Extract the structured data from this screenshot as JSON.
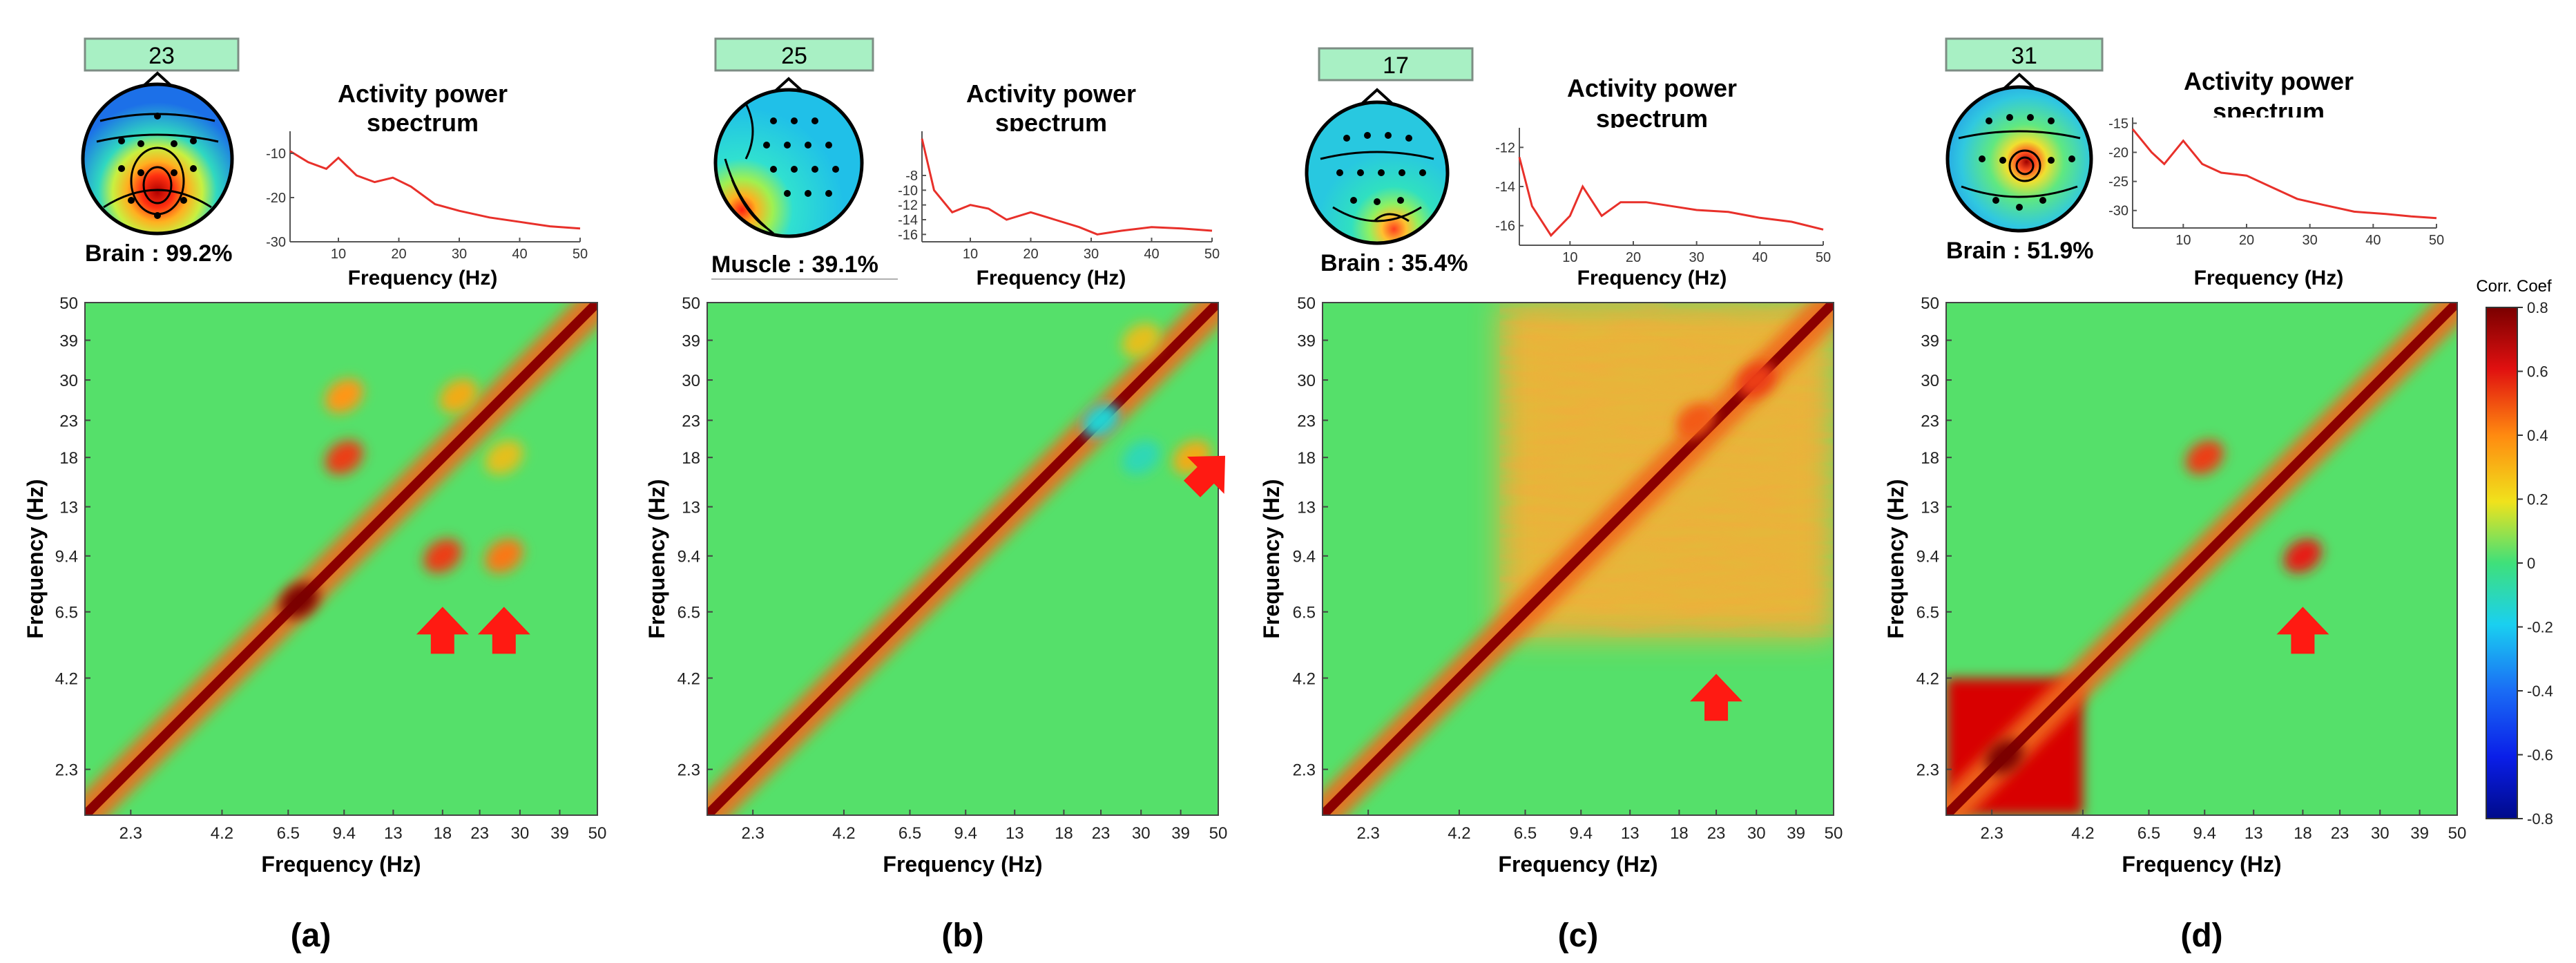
{
  "figure": {
    "power_title_line1": "Activity power",
    "power_title_line2": "spectrum",
    "freq_xlabel": "Frequency (Hz)",
    "freq_ylabel": "Frequency (Hz)"
  },
  "colorbar": {
    "title": "Corr. Coef",
    "ticks": [
      "0.8",
      "0.6",
      "0.4",
      "0.2",
      "0",
      "-0.2",
      "-0.4",
      "-0.6",
      "-0.8"
    ],
    "values": [
      0.8,
      0.6,
      0.4,
      0.2,
      0,
      -0.2,
      -0.4,
      -0.6,
      -0.8
    ]
  },
  "colors": {
    "badge": "#a8f0c4",
    "spectrum_line": "#e8302a",
    "arrow": "#ff1a12",
    "diagonal": "#8b0000",
    "background": "#55e06a"
  },
  "chart_data": [
    {
      "type": "heatmap",
      "panel": "(a)",
      "component": "23",
      "classification": "Brain : 99.2%",
      "power_spectrum": {
        "type": "line",
        "x": [
          2,
          5,
          8,
          10,
          13,
          16,
          19,
          22,
          26,
          30,
          35,
          40,
          45,
          50
        ],
        "y": [
          -9.5,
          -12,
          -13.5,
          -11,
          -15,
          -16.5,
          -15.5,
          -17.5,
          -21.5,
          -23,
          -24.5,
          -25.5,
          -26.5,
          -27
        ],
        "xlim": [
          2,
          50
        ],
        "ylim": [
          -30,
          -5
        ],
        "xticks": [
          "10",
          "20",
          "30",
          "40",
          "50"
        ],
        "yticks": [
          "-10",
          "-20",
          "-30"
        ],
        "xlabel": "Frequency (Hz)"
      },
      "xticks": [
        "2.3",
        "4.2",
        "6.5",
        "9.4",
        "13",
        "18",
        "23",
        "30",
        "39",
        "50"
      ],
      "yticks": [
        "50",
        "39",
        "30",
        "23",
        "18",
        "13",
        "9.4",
        "6.5",
        "4.2",
        "2.3"
      ],
      "xlabel": "Frequency (Hz)",
      "ylabel": "Frequency (Hz)",
      "features": [
        {
          "x_hz": 9.4,
          "y_hz": 27,
          "corr": 0.4
        },
        {
          "x_hz": 9.4,
          "y_hz": 18,
          "corr": 0.55
        },
        {
          "x_hz": 20,
          "y_hz": 27,
          "corr": 0.35
        },
        {
          "x_hz": 27,
          "y_hz": 18,
          "corr": 0.3
        },
        {
          "x_hz": 18,
          "y_hz": 9.4,
          "corr": 0.55
        },
        {
          "x_hz": 27,
          "y_hz": 9.4,
          "corr": 0.45
        },
        {
          "x_hz": 7,
          "y_hz": 7,
          "corr": 0.8
        }
      ],
      "arrows": [
        {
          "x_hz": 18,
          "y_hz": 5.6,
          "direction": "up"
        },
        {
          "x_hz": 27,
          "y_hz": 5.6,
          "direction": "up"
        }
      ]
    },
    {
      "type": "heatmap",
      "panel": "(b)",
      "component": "25",
      "classification": "Muscle : 39.1%",
      "power_spectrum": {
        "type": "line",
        "x": [
          2,
          4,
          7,
          10,
          13,
          16,
          20,
          24,
          28,
          31,
          35,
          40,
          45,
          50
        ],
        "y": [
          -3,
          -10,
          -13,
          -12,
          -12.5,
          -14,
          -13,
          -14,
          -15,
          -16,
          -15.5,
          -15,
          -15.2,
          -15.5
        ],
        "xlim": [
          2,
          50
        ],
        "ylim": [
          -17,
          -2
        ],
        "xticks": [
          "10",
          "20",
          "30",
          "40",
          "50"
        ],
        "yticks": [
          "-8",
          "-10",
          "-12",
          "-14",
          "-16"
        ],
        "xlabel": "Frequency (Hz)"
      },
      "xticks": [
        "2.3",
        "4.2",
        "6.5",
        "9.4",
        "13",
        "18",
        "23",
        "30",
        "39",
        "50"
      ],
      "yticks": [
        "50",
        "39",
        "30",
        "23",
        "18",
        "13",
        "9.4",
        "6.5",
        "4.2",
        "2.3"
      ],
      "xlabel": "Frequency (Hz)",
      "ylabel": "Frequency (Hz)",
      "features": [
        {
          "x_hz": 23,
          "y_hz": 23,
          "corr": -0.15
        },
        {
          "x_hz": 30,
          "y_hz": 18,
          "corr": -0.1
        },
        {
          "x_hz": 30,
          "y_hz": 39,
          "corr": 0.3
        },
        {
          "x_hz": 42,
          "y_hz": 18,
          "corr": 0.35
        }
      ],
      "arrows": [
        {
          "x_hz": 46,
          "y_hz": 16,
          "direction": "up-right"
        }
      ]
    },
    {
      "type": "heatmap",
      "panel": "(c)",
      "component": "17",
      "classification": "Brain : 35.4%",
      "power_spectrum": {
        "type": "line",
        "x": [
          2,
          4,
          7,
          10,
          12,
          15,
          18,
          22,
          26,
          30,
          35,
          40,
          45,
          50
        ],
        "y": [
          -12.5,
          -15,
          -16.5,
          -15.5,
          -14,
          -15.5,
          -14.8,
          -14.8,
          -15,
          -15.2,
          -15.3,
          -15.6,
          -15.8,
          -16.2
        ],
        "xlim": [
          2,
          50
        ],
        "ylim": [
          -17,
          -11
        ],
        "xticks": [
          "10",
          "20",
          "30",
          "40",
          "50"
        ],
        "yticks": [
          "-12",
          "-14",
          "-16"
        ],
        "xlabel": "Frequency (Hz)"
      },
      "xticks": [
        "2.3",
        "4.2",
        "6.5",
        "9.4",
        "13",
        "18",
        "23",
        "30",
        "39",
        "50"
      ],
      "yticks": [
        "50",
        "39",
        "30",
        "23",
        "18",
        "13",
        "9.4",
        "6.5",
        "4.2",
        "2.3"
      ],
      "xlabel": "Frequency (Hz)",
      "ylabel": "Frequency (Hz)",
      "features": [
        {
          "x_hz": 20,
          "y_hz": 23,
          "corr": 0.5
        },
        {
          "x_hz": 30,
          "y_hz": 30,
          "corr": 0.55
        }
      ],
      "arrows": [
        {
          "x_hz": 23,
          "y_hz": 3.6,
          "direction": "up"
        }
      ]
    },
    {
      "type": "heatmap",
      "panel": "(d)",
      "component": "31",
      "classification": "Brain : 51.9%",
      "power_spectrum": {
        "type": "line",
        "x": [
          2,
          5,
          7,
          10,
          13,
          16,
          20,
          24,
          28,
          32,
          37,
          42,
          46,
          50
        ],
        "y": [
          -16,
          -20,
          -22,
          -18,
          -22,
          -23.5,
          -24,
          -26,
          -28,
          -29,
          -30.2,
          -30.6,
          -31,
          -31.3
        ],
        "xlim": [
          2,
          50
        ],
        "ylim": [
          -33,
          -14
        ],
        "xticks": [
          "10",
          "20",
          "30",
          "40",
          "50"
        ],
        "yticks": [
          "-15",
          "-20",
          "-25",
          "-30"
        ],
        "xlabel": "Frequency (Hz)"
      },
      "xticks": [
        "2.3",
        "4.2",
        "6.5",
        "9.4",
        "13",
        "18",
        "23",
        "30",
        "39",
        "50"
      ],
      "yticks": [
        "50",
        "39",
        "30",
        "23",
        "18",
        "13",
        "9.4",
        "6.5",
        "4.2",
        "2.3"
      ],
      "xlabel": "Frequency (Hz)",
      "ylabel": "Frequency (Hz)",
      "features": [
        {
          "x_hz": 9.4,
          "y_hz": 18,
          "corr": 0.55
        },
        {
          "x_hz": 18,
          "y_hz": 9.4,
          "corr": 0.6
        },
        {
          "x_hz": 2.5,
          "y_hz": 2.5,
          "corr": 0.8
        }
      ],
      "arrows": [
        {
          "x_hz": 18,
          "y_hz": 5.6,
          "direction": "up"
        }
      ]
    }
  ]
}
